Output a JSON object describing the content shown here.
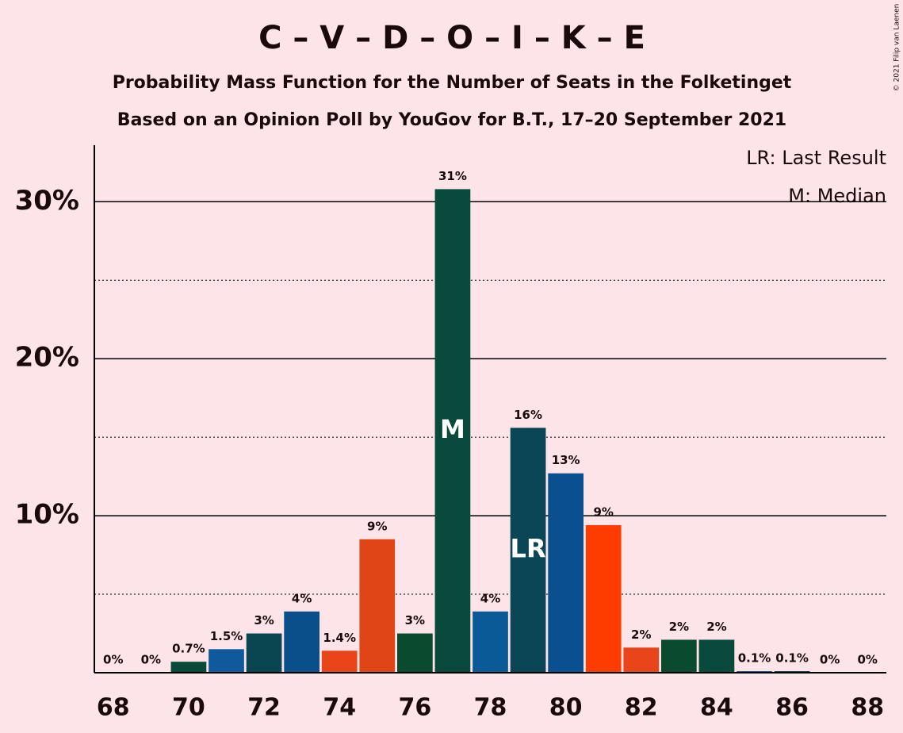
{
  "chart_data": {
    "type": "bar",
    "title": "C – V – D – O – I – K – E",
    "subtitle": "Probability Mass Function for the Number of Seats in the Folketinget",
    "subtitle2": "Based on an Opinion Poll by YouGov for B.T., 17–20 September 2021",
    "copyright": "© 2021 Filip van Laenen",
    "legend": [
      "LR: Last Result",
      "M: Median"
    ],
    "x": [
      68,
      69,
      70,
      71,
      72,
      73,
      74,
      75,
      76,
      77,
      78,
      79,
      80,
      81,
      82,
      83,
      84,
      85,
      86,
      87,
      88
    ],
    "values": [
      0,
      0,
      0.7,
      1.5,
      2.5,
      3.9,
      1.4,
      8.5,
      2.5,
      30.8,
      3.9,
      15.6,
      12.7,
      9.4,
      1.6,
      2.1,
      2.1,
      0.1,
      0.1,
      0,
      0
    ],
    "value_labels": [
      "0%",
      "0%",
      "0.7%",
      "1.5%",
      "3%",
      "4%",
      "1.4%",
      "9%",
      "3%",
      "31%",
      "4%",
      "16%",
      "13%",
      "9%",
      "2%",
      "2%",
      "2%",
      "0.1%",
      "0.1%",
      "0%",
      "0%"
    ],
    "colors": [
      "#0a4a3a",
      "#0f5a9c",
      "#0a4a3a",
      "#0f5a9c",
      "#0a4552",
      "#0a4f8a",
      "#e8451a",
      "#e04515",
      "#0a4a2e",
      "#0a4a3c",
      "#0a5a98",
      "#0a4656",
      "#0a4f8f",
      "#ff3c00",
      "#e8451a",
      "#0a4a2e",
      "#0a4a3c",
      "#0a5a98",
      "#0a4552",
      "#0a4a3a",
      "#0a4a3a"
    ],
    "annotations": [
      {
        "label": "M",
        "x": 77
      },
      {
        "label": "LR",
        "x": 79
      }
    ],
    "xlim": [
      67.5,
      88.5
    ],
    "xticks": [
      68,
      70,
      72,
      74,
      76,
      78,
      80,
      82,
      84,
      86,
      88
    ],
    "ylim": [
      0,
      33.6
    ],
    "yticks": [
      {
        "value": 10,
        "label": "10%"
      },
      {
        "value": 20,
        "label": "20%"
      },
      {
        "value": 30,
        "label": "30%"
      }
    ],
    "minor_yticks": [
      5,
      15,
      25
    ],
    "grid": true
  }
}
